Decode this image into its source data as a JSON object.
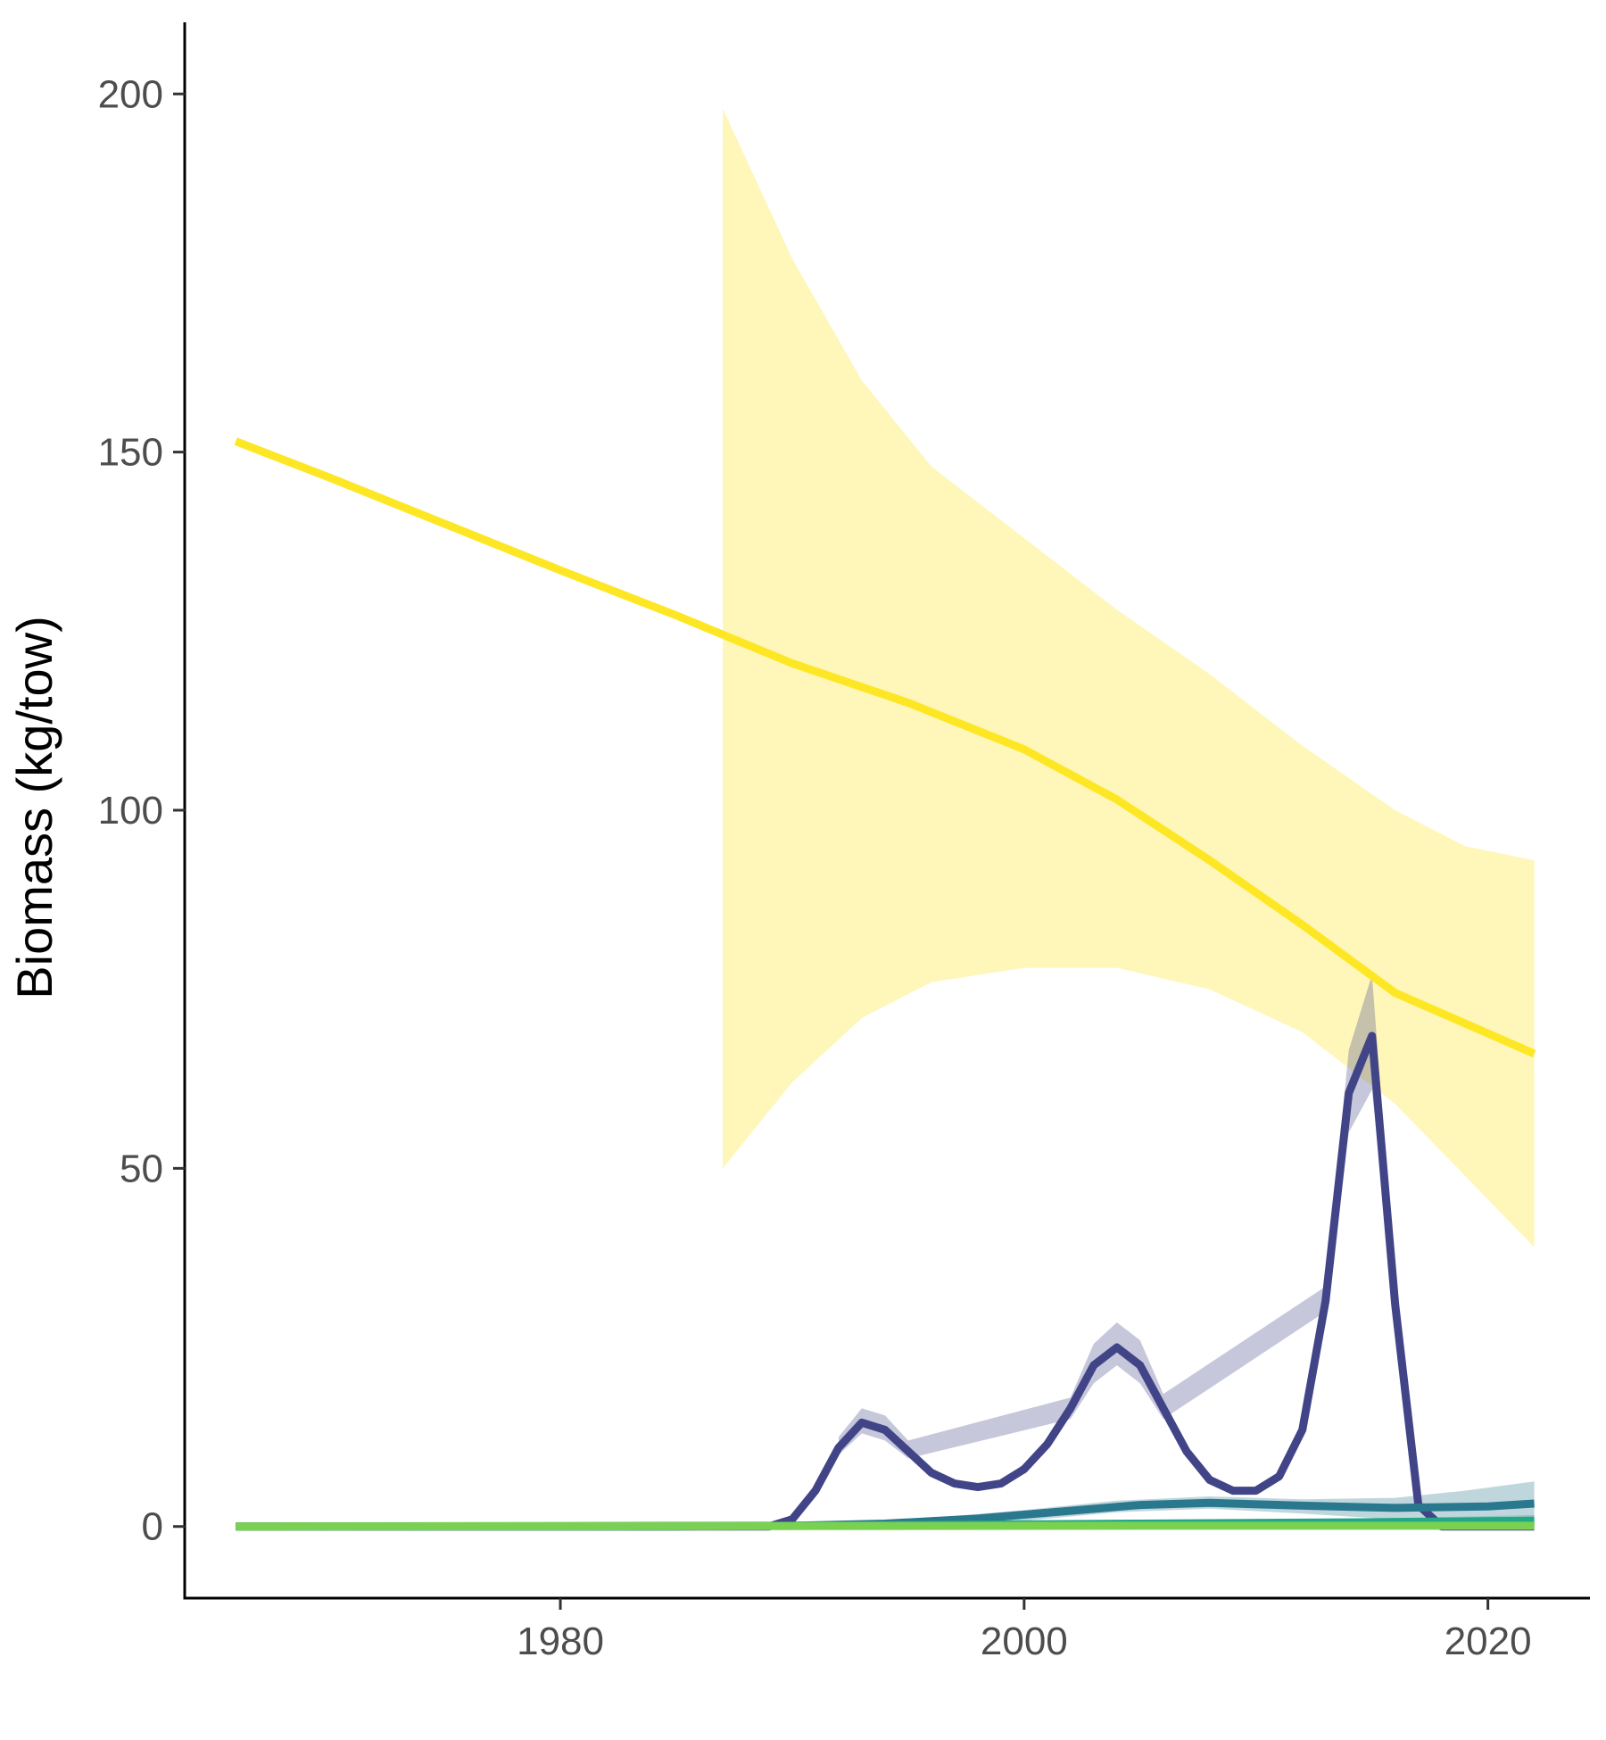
{
  "chart_data": {
    "type": "line",
    "title": "",
    "xlabel": "",
    "ylabel": "Biomass (kg/tow)",
    "xlim": [
      1963.8,
      2024.4
    ],
    "ylim": [
      -10,
      210
    ],
    "x_ticks": [
      1980,
      2000,
      2020
    ],
    "y_ticks": [
      0,
      50,
      100,
      150,
      200
    ],
    "grid": false,
    "legend": "none",
    "series": [
      {
        "color": "#FDE725",
        "band_color": "#FDE725",
        "band_opacity": 0.32,
        "line": [
          [
            1966,
            151.5
          ],
          [
            1970,
            146.5
          ],
          [
            1975,
            140
          ],
          [
            1980,
            133.5
          ],
          [
            1985,
            127.2
          ],
          [
            1990,
            120.5
          ],
          [
            1995,
            115
          ],
          [
            2000,
            108.5
          ],
          [
            2004,
            101.5
          ],
          [
            2008,
            93
          ],
          [
            2012,
            84
          ],
          [
            2016,
            74.5
          ],
          [
            2022,
            66
          ]
        ],
        "band": [
          {
            "x": 1987,
            "lo": 50,
            "hi": 198
          },
          {
            "x": 1990,
            "lo": 62,
            "hi": 177
          },
          {
            "x": 1993,
            "lo": 71,
            "hi": 160
          },
          {
            "x": 1996,
            "lo": 76,
            "hi": 148
          },
          {
            "x": 2000,
            "lo": 78,
            "hi": 138
          },
          {
            "x": 2004,
            "lo": 78,
            "hi": 128
          },
          {
            "x": 2008,
            "lo": 75,
            "hi": 119
          },
          {
            "x": 2012,
            "lo": 69,
            "hi": 109
          },
          {
            "x": 2016,
            "lo": 59,
            "hi": 100
          },
          {
            "x": 2019,
            "lo": 49,
            "hi": 95
          },
          {
            "x": 2022,
            "lo": 39,
            "hi": 93
          }
        ]
      },
      {
        "color": "#414487",
        "band_color": "#414487",
        "band_opacity": 0.3,
        "line": [
          [
            1966,
            0
          ],
          [
            1989,
            0
          ],
          [
            1990,
            1
          ],
          [
            1991,
            5
          ],
          [
            1992,
            11
          ],
          [
            1993,
            14.5
          ],
          [
            1994,
            13.5
          ],
          [
            1995,
            10.5
          ],
          [
            1996,
            7.5
          ],
          [
            1997,
            6
          ],
          [
            1998,
            5.5
          ],
          [
            1999,
            6
          ],
          [
            2000,
            8
          ],
          [
            2001,
            11.5
          ],
          [
            2002,
            16.5
          ],
          [
            2003,
            22.5
          ],
          [
            2004,
            25
          ],
          [
            2005,
            22.5
          ],
          [
            2006,
            16.5
          ],
          [
            2007,
            10.5
          ],
          [
            2008,
            6.5
          ],
          [
            2009,
            5
          ],
          [
            2010,
            5
          ],
          [
            2011,
            7
          ],
          [
            2012,
            13.5
          ],
          [
            2013,
            31.5
          ],
          [
            2014,
            60.5
          ],
          [
            2015,
            68.5
          ],
          [
            2016,
            31
          ],
          [
            2017,
            3
          ],
          [
            2018,
            0
          ],
          [
            2022,
            0
          ]
        ],
        "band": [
          {
            "x": 1992,
            "lo": 10,
            "hi": 12.5
          },
          {
            "x": 1993,
            "lo": 13,
            "hi": 16.5
          },
          {
            "x": 1994,
            "lo": 12,
            "hi": 15.5
          },
          {
            "x": 1995,
            "lo": 9.5,
            "hi": 12
          },
          {
            "x": 2002,
            "lo": 15,
            "hi": 18
          },
          {
            "x": 2003,
            "lo": 20,
            "hi": 25.5
          },
          {
            "x": 2004,
            "lo": 22.5,
            "hi": 28.5
          },
          {
            "x": 2005,
            "lo": 20,
            "hi": 26
          },
          {
            "x": 2006,
            "lo": 15,
            "hi": 18.5
          },
          {
            "x": 2013,
            "lo": 30,
            "hi": 33.5
          },
          {
            "x": 2014,
            "lo": 55,
            "hi": 66.5
          },
          {
            "x": 2015,
            "lo": 61,
            "hi": 77
          },
          {
            "x": 2016,
            "lo": 29,
            "hi": 34
          }
        ]
      },
      {
        "color": "#2A788E",
        "band_color": "#2A788E",
        "band_opacity": 0.3,
        "line": [
          [
            1966,
            0
          ],
          [
            1985,
            0
          ],
          [
            1990,
            0.1
          ],
          [
            1994,
            0.4
          ],
          [
            1998,
            1.1
          ],
          [
            2002,
            2.2
          ],
          [
            2005,
            3.0
          ],
          [
            2008,
            3.3
          ],
          [
            2012,
            2.9
          ],
          [
            2016,
            2.6
          ],
          [
            2020,
            2.8
          ],
          [
            2022,
            3.2
          ]
        ],
        "band": [
          {
            "x": 1996,
            "lo": 0.2,
            "hi": 1.2
          },
          {
            "x": 2000,
            "lo": 0.8,
            "hi": 2.3
          },
          {
            "x": 2004,
            "lo": 2.0,
            "hi": 3.6
          },
          {
            "x": 2008,
            "lo": 2.5,
            "hi": 4.2
          },
          {
            "x": 2012,
            "lo": 1.8,
            "hi": 3.8
          },
          {
            "x": 2016,
            "lo": 1.0,
            "hi": 4.0
          },
          {
            "x": 2019,
            "lo": 0.5,
            "hi": 5.0
          },
          {
            "x": 2022,
            "lo": 0.2,
            "hi": 6.3
          }
        ]
      },
      {
        "color": "#22A884",
        "band_color": "#22A884",
        "band_opacity": 0.3,
        "line": [
          [
            1966,
            0
          ],
          [
            1990,
            0.1
          ],
          [
            2005,
            0.4
          ],
          [
            2015,
            0.6
          ],
          [
            2022,
            0.8
          ]
        ],
        "band": [
          {
            "x": 1990,
            "lo": 0,
            "hi": 0.3
          },
          {
            "x": 2005,
            "lo": 0.1,
            "hi": 0.8
          },
          {
            "x": 2015,
            "lo": 0.2,
            "hi": 1.1
          },
          {
            "x": 2022,
            "lo": 0.2,
            "hi": 1.6
          }
        ]
      },
      {
        "color": "#7AD151",
        "band_color": "#7AD151",
        "band_opacity": 0.35,
        "line": [
          [
            1966,
            0
          ],
          [
            1990,
            0.05
          ],
          [
            2005,
            0.1
          ],
          [
            2015,
            0.1
          ],
          [
            2022,
            0.1
          ]
        ],
        "band": [
          {
            "x": 1990,
            "lo": 0,
            "hi": 0.2
          },
          {
            "x": 2005,
            "lo": 0,
            "hi": 0.3
          },
          {
            "x": 2015,
            "lo": 0,
            "hi": 0.4
          },
          {
            "x": 2022,
            "lo": 0,
            "hi": 0.6
          }
        ]
      }
    ]
  }
}
